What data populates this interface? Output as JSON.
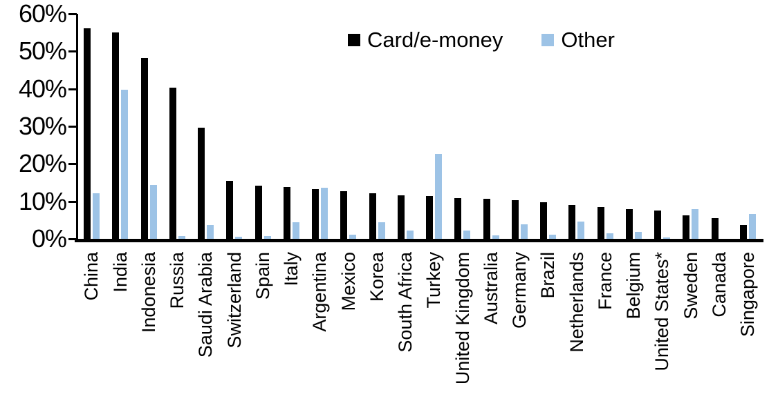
{
  "colors": {
    "card": "#000000",
    "other": "#9DC3E6",
    "axis": "#000000",
    "background": "#FFFFFF"
  },
  "legend": {
    "items": [
      {
        "label": "Card/e-money",
        "series": "card"
      },
      {
        "label": "Other",
        "series": "other"
      }
    ]
  },
  "y_axis": {
    "min": 0,
    "max": 60,
    "step": 10,
    "tick_labels": [
      "0%",
      "10%",
      "20%",
      "30%",
      "40%",
      "50%",
      "60%"
    ]
  },
  "chart_data": {
    "type": "bar",
    "title": "",
    "xlabel": "",
    "ylabel": "",
    "ylim": [
      0,
      60
    ],
    "ytick_format": "percent",
    "grid": false,
    "legend_position": "top-center",
    "categories": [
      "China",
      "India",
      "Indonesia",
      "Russia",
      "Saudi Arabia",
      "Switzerland",
      "Spain",
      "Italy",
      "Argentina",
      "Mexico",
      "Korea",
      "South Africa",
      "Turkey",
      "United Kingdom",
      "Australia",
      "Germany",
      "Brazil",
      "Netherlands",
      "France",
      "Belgium",
      "United States*",
      "Sweden",
      "Canada",
      "Singapore"
    ],
    "series": [
      {
        "name": "Card/e-money",
        "color": "#000000",
        "values": [
          56.2,
          55.0,
          48.2,
          40.4,
          29.7,
          15.4,
          14.1,
          13.9,
          13.2,
          12.7,
          12.1,
          11.6,
          11.4,
          10.9,
          10.6,
          10.4,
          9.8,
          9.0,
          8.5,
          7.9,
          7.6,
          6.3,
          5.6,
          3.7
        ]
      },
      {
        "name": "Other",
        "color": "#9DC3E6",
        "values": [
          12.1,
          39.8,
          14.4,
          0.8,
          3.7,
          0.6,
          0.8,
          4.5,
          13.7,
          1.2,
          4.5,
          2.2,
          22.6,
          2.2,
          0.9,
          3.8,
          1.1,
          4.7,
          1.4,
          1.9,
          0.3,
          8.0,
          0.0,
          6.6
        ]
      }
    ]
  }
}
